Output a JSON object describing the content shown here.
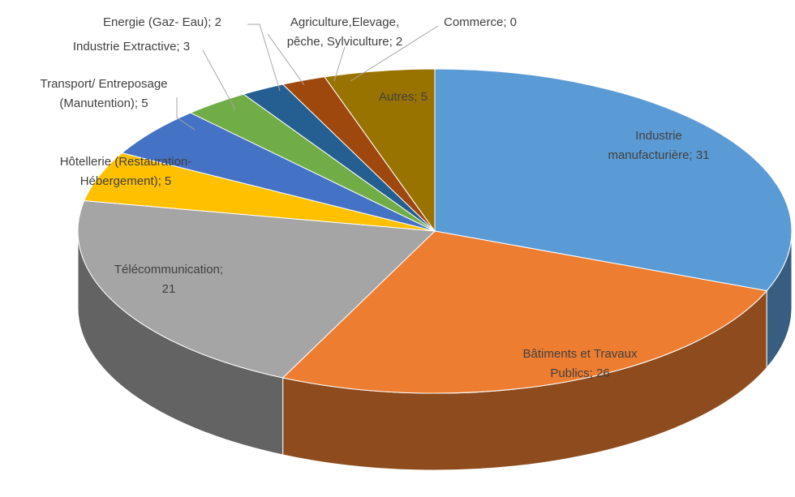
{
  "chart_data": {
    "type": "pie3d",
    "labels": [
      [
        "Industrie",
        "manufacturière; 31"
      ],
      [
        "Bâtiments et Travaux",
        "Publics; 26"
      ],
      [
        "Télécommunication;",
        "21"
      ],
      [
        "Hôtellerie (Restauration-",
        "Hébergement); 5"
      ],
      [
        "Transport/ Entreposage",
        "(Manutention); 5"
      ],
      [
        "Industrie Extractive; 3"
      ],
      [
        "Energie (Gaz- Eau); 2"
      ],
      [
        "Agriculture,Elevage,",
        "pêche, Sylviculture; 2"
      ],
      [
        "Commerce; 0"
      ],
      [
        "Autres; 5"
      ]
    ],
    "values": [
      31,
      26,
      21,
      5,
      5,
      3,
      2,
      2,
      0,
      5
    ],
    "colors": [
      "#5b9bd5",
      "#ed7d31",
      "#a5a5a5",
      "#ffc000",
      "#4472c4",
      "#70ad47",
      "#255e91",
      "#9e480e",
      "#636363",
      "#997300"
    ]
  }
}
